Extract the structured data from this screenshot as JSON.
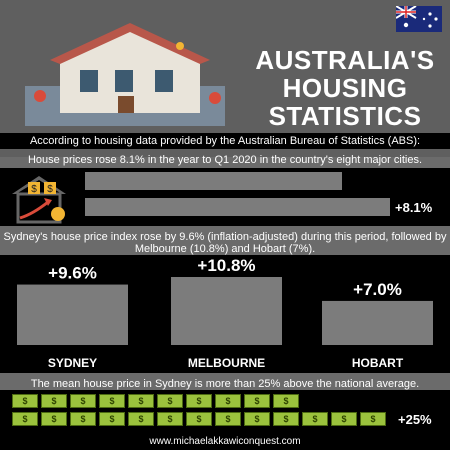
{
  "title": [
    "AUSTRALIA'S",
    "HOUSING",
    "STATISTICS"
  ],
  "intro": "According to housing data provided by the Australian Bureau of Statistics (ABS):",
  "stat1_text": "House prices rose 8.1% in the year to Q1 2020 in the country's eight major cities.",
  "stat1_label": "+8.1%",
  "stat2_text": "Sydney's house price index rose by 9.6% (inflation-adjusted) during this period, followed by Melbourne (10.8%) and Hobart (7%).",
  "stat3_text": "The mean house price in Sydney is more than 25% above the national average.",
  "stat3_label": "+25%",
  "footer": "www.michaelakkawiconquest.com",
  "money_symbol": "$",
  "colors": {
    "bar": "#7c7c7c",
    "background": "#6b6b6b",
    "band": "#000000",
    "money": "#9bc23d"
  },
  "chart_data": [
    {
      "type": "bar",
      "orientation": "horizontal",
      "categories": [
        "",
        ""
      ],
      "values": [
        null,
        8.1
      ],
      "value_labels": [
        "",
        "+8.1%"
      ]
    },
    {
      "type": "bar",
      "categories": [
        "SYDNEY",
        "MELBOURNE",
        "HOBART"
      ],
      "values": [
        9.6,
        10.8,
        7.0
      ],
      "value_labels": [
        "+9.6%",
        "+10.8%",
        "+7.0%"
      ]
    },
    {
      "type": "bar",
      "orientation": "horizontal",
      "categories": [
        "",
        ""
      ],
      "values": [
        null,
        25
      ],
      "value_labels": [
        "",
        "+25%"
      ]
    }
  ]
}
